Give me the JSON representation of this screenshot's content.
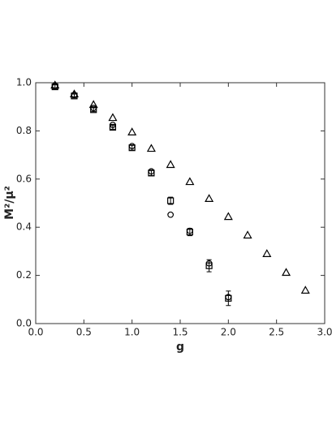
{
  "chart_data": {
    "type": "scatter",
    "x_label": "g",
    "y_label": "M²/μ²",
    "xlim": [
      0,
      3
    ],
    "ylim": [
      0,
      1
    ],
    "xticks": [
      {
        "value": 0,
        "label": "0.0"
      },
      {
        "value": 0.5,
        "label": "0.5"
      },
      {
        "value": 1,
        "label": "1.0"
      },
      {
        "value": 1.5,
        "label": "1.5"
      },
      {
        "value": 2,
        "label": "2.0"
      },
      {
        "value": 2.5,
        "label": "2.5"
      },
      {
        "value": 3,
        "label": "3.0"
      }
    ],
    "yticks": [
      {
        "value": 0,
        "label": "0.0"
      },
      {
        "value": 0.2,
        "label": "0.2"
      },
      {
        "value": 0.4,
        "label": "0.4"
      },
      {
        "value": 0.6,
        "label": "0.6"
      },
      {
        "value": 0.8,
        "label": "0.8"
      },
      {
        "value": 1,
        "label": "1.0"
      }
    ],
    "series": [
      {
        "marker": "triangle",
        "color": "#000000",
        "x": [
          0.2,
          0.4,
          0.6,
          0.8,
          1.0,
          1.2,
          1.4,
          1.6,
          1.8,
          2.0,
          2.2,
          2.4,
          2.6,
          2.8
        ],
        "values": [
          0.99,
          0.953,
          0.909,
          0.855,
          0.795,
          0.727,
          0.66,
          0.589,
          0.519,
          0.444,
          0.367,
          0.29,
          0.212,
          0.138
        ]
      },
      {
        "marker": "square",
        "color": "#000000",
        "x": [
          0.2,
          0.4,
          0.6,
          0.8,
          1.0,
          1.2,
          1.4,
          1.6,
          1.8,
          2.0
        ],
        "values": [
          0.983,
          0.945,
          0.888,
          0.815,
          0.73,
          0.625,
          0.51,
          0.38,
          0.24,
          0.105
        ],
        "errors": [
          0.008,
          0.008,
          0.008,
          0.008,
          0.01,
          0.01,
          0.015,
          0.015,
          0.025,
          0.03
        ]
      },
      {
        "marker": "circle",
        "color": "#000000",
        "x": [
          0.2,
          0.4,
          0.6,
          0.8,
          1.0,
          1.2,
          1.4,
          1.6,
          1.8,
          2.0
        ],
        "values": [
          0.988,
          0.95,
          0.895,
          0.825,
          0.737,
          0.632,
          0.452,
          0.385,
          0.25,
          0.11
        ]
      }
    ]
  }
}
